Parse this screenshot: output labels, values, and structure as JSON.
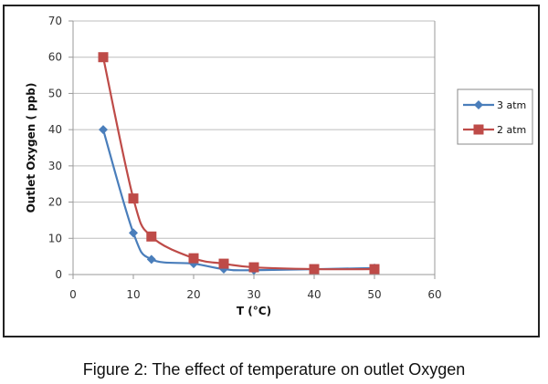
{
  "caption": "Figure 2: The effect of temperature on outlet Oxygen",
  "chart_data": {
    "type": "line",
    "title": "",
    "xlabel": "T (°C)",
    "ylabel": "Outlet Oxygen ( ppb)",
    "xlim": [
      0,
      60
    ],
    "ylim": [
      0,
      70
    ],
    "xticks": [
      0,
      10,
      20,
      30,
      40,
      50,
      60
    ],
    "yticks": [
      0,
      10,
      20,
      30,
      40,
      50,
      60,
      70
    ],
    "grid": "horizontal",
    "legend_position": "right",
    "smooth": true,
    "series": [
      {
        "name": "3 atm",
        "color": "#4a7ebb",
        "marker": "diamond",
        "x": [
          5,
          10,
          13,
          20,
          25,
          30,
          50
        ],
        "y": [
          40,
          11.5,
          4.2,
          3,
          1.5,
          1.2,
          1.8
        ]
      },
      {
        "name": "2 atm",
        "color": "#be4b48",
        "marker": "square",
        "x": [
          5,
          10,
          13,
          20,
          25,
          30,
          40,
          50
        ],
        "y": [
          60,
          21,
          10.5,
          4.5,
          3,
          2,
          1.5,
          1.5
        ]
      }
    ]
  }
}
